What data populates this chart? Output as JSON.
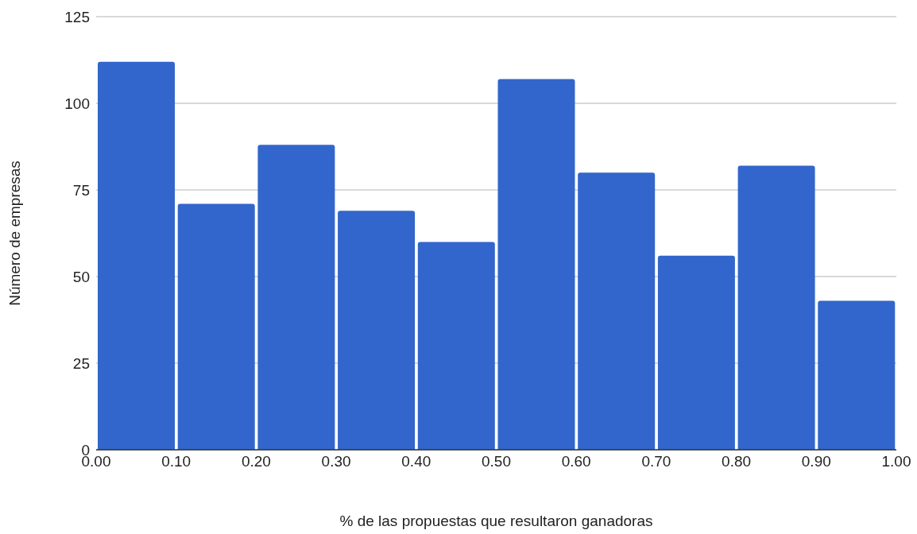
{
  "chart_data": {
    "type": "histogram",
    "xlabel": "% de las propuestas que resultaron ganadoras",
    "ylabel": "Número de empresas",
    "bins": [
      0,
      0.1,
      0.2,
      0.3,
      0.4,
      0.5,
      0.6,
      0.7,
      0.8,
      0.9,
      1.0
    ],
    "values": [
      112,
      71,
      88,
      69,
      60,
      107,
      80,
      56,
      82,
      43
    ],
    "color": "#3366cc",
    "xlim": [
      0,
      1
    ],
    "xticks": [
      {
        "value": 0,
        "label": "0.00"
      },
      {
        "value": 0.1,
        "label": "0.10"
      },
      {
        "value": 0.2,
        "label": "0.20"
      },
      {
        "value": 0.3,
        "label": "0.30"
      },
      {
        "value": 0.4,
        "label": "0.40"
      },
      {
        "value": 0.5,
        "label": "0.50"
      },
      {
        "value": 0.6,
        "label": "0.60"
      },
      {
        "value": 0.7,
        "label": "0.70"
      },
      {
        "value": 0.8,
        "label": "0.80"
      },
      {
        "value": 0.9,
        "label": "0.90"
      },
      {
        "value": 1,
        "label": "1.00"
      }
    ],
    "ylim": [
      0,
      125
    ],
    "yticks": [
      0,
      25,
      50,
      75,
      100,
      125
    ],
    "grid": "y"
  }
}
